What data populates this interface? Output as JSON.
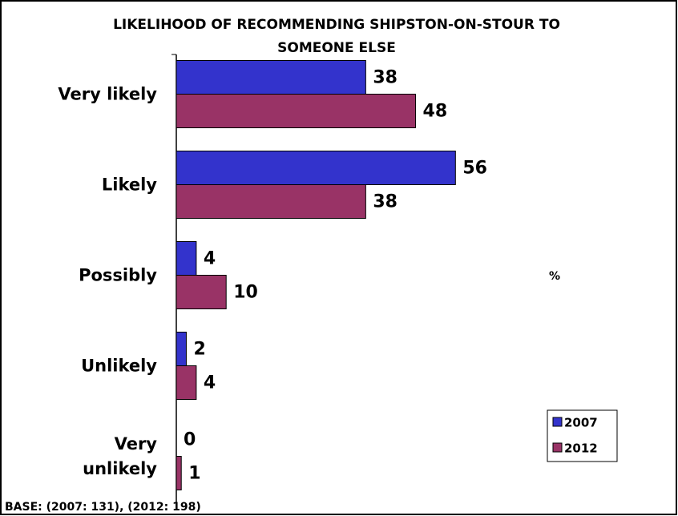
{
  "chart_data": {
    "type": "bar",
    "orientation": "horizontal",
    "title": "LIKELIHOOD OF RECOMMENDING SHIPSTON-ON-STOUR TO SOMEONE ELSE",
    "categories": [
      "Very likely",
      "Likely",
      "Possibly",
      "Unlikely",
      "Very unlikely"
    ],
    "series": [
      {
        "name": "2007",
        "color": "#3333cc",
        "values": [
          38,
          56,
          4,
          2,
          0
        ]
      },
      {
        "name": "2012",
        "color": "#993366",
        "values": [
          48,
          38,
          10,
          4,
          1
        ]
      }
    ],
    "xlim": [
      0,
      100
    ],
    "annotation": "%",
    "footnote": "BASE: (2007: 131), (2012: 198)",
    "legend": "bottom-right"
  }
}
